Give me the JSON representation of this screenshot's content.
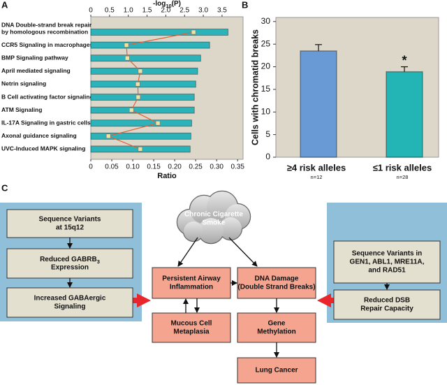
{
  "panel_labels": [
    "A",
    "B",
    "C"
  ],
  "chart_data": [
    {
      "type": "bar",
      "orientation": "horizontal",
      "categories": [
        [
          "DNA Double-strand break repair",
          "by homologous recombination"
        ],
        "CCR5 Signaling in macrophages",
        "BMP Signaling pathway",
        "April mediated signaling",
        "Netrin signaling",
        "B Cell activating factor signaling",
        "ATM Signaling",
        "IL-17A Signaling in gastric cells",
        "Axonal guidance signaling",
        "UVC-Induced MAPK signaling"
      ],
      "series": [
        {
          "type": "bar",
          "axis": "x2",
          "color": "#2bb3b9",
          "values": [
            3.66,
            3.17,
            2.93,
            2.85,
            2.8,
            2.76,
            2.76,
            2.69,
            2.67,
            2.65
          ]
        },
        {
          "type": "line",
          "axis": "x",
          "color": "#e0603a",
          "marker_color": "#ece3a6",
          "values": [
            0.245,
            0.085,
            0.087,
            0.118,
            0.112,
            0.113,
            0.097,
            0.16,
            0.042,
            0.118
          ]
        }
      ],
      "x2label": [
        "-log",
        {
          "sub": "10"
        },
        "(P)"
      ],
      "x2lim": [
        0,
        4.06
      ],
      "x2ticks": [
        0,
        0.5,
        {
          "value": 1,
          "label": "1.0"
        },
        1.5,
        {
          "value": 2,
          "label": "2.0"
        },
        2.5,
        {
          "value": 3,
          "label": "3.0"
        },
        3.5
      ],
      "xlabel": "Ratio",
      "xlim": [
        0,
        0.363
      ],
      "xticks": [
        0,
        0.05,
        {
          "value": 0.1,
          "label": "0.10"
        },
        0.15,
        {
          "value": 0.2,
          "label": "0.20"
        },
        0.25,
        {
          "value": 0.3,
          "label": "0.30"
        },
        0.35
      ]
    },
    {
      "type": "bar",
      "orientation": "vertical",
      "categories": [
        "≥4 risk alleles",
        "≤1 risk alleles"
      ],
      "sample_sizes": [
        "n=12",
        "n=28"
      ],
      "values": [
        23.5,
        18.9
      ],
      "errors": [
        1.4,
        1.1
      ],
      "colors": [
        "#6a9ad6",
        "#23b5b5"
      ],
      "significance": [
        null,
        "*"
      ],
      "ylabel": "Cells with chromatid breaks",
      "ylim": [
        0,
        30.9
      ],
      "yticks": [
        0,
        5,
        10,
        15,
        20,
        25,
        30
      ]
    }
  ],
  "diagram": {
    "nodes": [
      {
        "lines": [
          "Sequence Variants",
          "at 15q12"
        ]
      },
      {
        "lines": [
          [
            "Reduced GABRB",
            {
              "sub": "3"
            }
          ],
          "Expression"
        ]
      },
      {
        "lines": [
          "Increased GABAergic",
          "Signaling"
        ]
      },
      {
        "lines": [
          "Sequence Variants in",
          "GEN1, ABL1, MRE11A,",
          "and RAD51"
        ]
      },
      {
        "lines": [
          "Reduced DSB",
          "Repair Capacity"
        ]
      },
      {
        "lines": [
          "Chronic Cigarette",
          "Smoke"
        ]
      },
      {
        "lines": [
          "Persistent Airway",
          "Inflammation"
        ]
      },
      {
        "lines": [
          "Mucous Cell",
          "Metaplasia"
        ]
      },
      {
        "lines": [
          "DNA Damage",
          "(Double Strand Breaks)"
        ]
      },
      {
        "lines": [
          "Gene",
          "Methylation"
        ]
      },
      {
        "lines": [
          "Lung Cancer"
        ]
      }
    ]
  }
}
